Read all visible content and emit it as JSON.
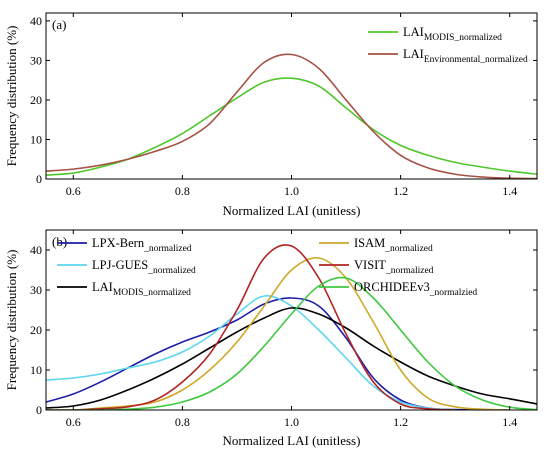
{
  "chart_data": [
    {
      "type": "line",
      "panel_label": "(a)",
      "xlabel": "Normalized LAI (unitless)",
      "ylabel": "Frequency distribution (%)",
      "xlim": [
        0.55,
        1.45
      ],
      "ylim": [
        0,
        42
      ],
      "xticks": [
        "0.6",
        "0.8",
        "1.0",
        "1.2",
        "1.4"
      ],
      "yticks": [
        "0",
        "10",
        "20",
        "30",
        "40"
      ],
      "legend_position": "top-right",
      "series": [
        {
          "name": "LAI",
          "sub": "MODIS_normalized",
          "color": "#4fc72b",
          "x": [
            0.55,
            0.6,
            0.65,
            0.7,
            0.75,
            0.8,
            0.85,
            0.9,
            0.95,
            1.0,
            1.05,
            1.1,
            1.15,
            1.2,
            1.25,
            1.3,
            1.35,
            1.4,
            1.45
          ],
          "y": [
            1,
            1.5,
            3,
            5,
            8,
            11.5,
            16,
            20.5,
            24.5,
            25.5,
            23.5,
            18,
            12.5,
            8.5,
            6,
            4.2,
            3,
            2,
            1.2
          ]
        },
        {
          "name": "LAI",
          "sub": "Environmental_normalized",
          "color": "#a55345",
          "x": [
            0.55,
            0.6,
            0.65,
            0.7,
            0.75,
            0.8,
            0.85,
            0.9,
            0.95,
            1.0,
            1.05,
            1.1,
            1.15,
            1.2,
            1.25,
            1.3,
            1.35,
            1.4,
            1.45
          ],
          "y": [
            2,
            2.5,
            3.5,
            5,
            7,
            9.5,
            14,
            22,
            29.5,
            31.5,
            28,
            20,
            12,
            6,
            2.8,
            1.2,
            0.5,
            0.2,
            0.1
          ]
        }
      ]
    },
    {
      "type": "line",
      "panel_label": "(b)",
      "xlabel": "Normalized LAI (unitless)",
      "ylabel": "Frequency distribution (%)",
      "xlim": [
        0.55,
        1.45
      ],
      "ylim": [
        0,
        45
      ],
      "xticks": [
        "0.6",
        "0.8",
        "1.0",
        "1.2",
        "1.4"
      ],
      "yticks": [
        "0",
        "10",
        "20",
        "30",
        "40"
      ],
      "legend_position": "top",
      "series": [
        {
          "name": "LPX-Bern",
          "sub": "_normalized",
          "color": "#1e1ea8",
          "x": [
            0.55,
            0.6,
            0.65,
            0.7,
            0.75,
            0.8,
            0.85,
            0.9,
            0.95,
            1.0,
            1.05,
            1.1,
            1.15,
            1.2,
            1.25,
            1.3,
            1.35,
            1.4
          ],
          "y": [
            2,
            4,
            7,
            10.5,
            14,
            17,
            19.5,
            22.5,
            26.5,
            28,
            26,
            18,
            8,
            2.5,
            0.5,
            0.1,
            0,
            0
          ]
        },
        {
          "name": "LPJ-GUES",
          "sub": "_normalized",
          "color": "#5cd6f0",
          "x": [
            0.55,
            0.6,
            0.65,
            0.7,
            0.75,
            0.8,
            0.85,
            0.9,
            0.95,
            1.0,
            1.05,
            1.1,
            1.15,
            1.2,
            1.25,
            1.3
          ],
          "y": [
            7.5,
            8,
            9,
            10.5,
            12,
            14.5,
            18.5,
            24,
            28.5,
            26,
            20,
            13,
            6,
            2,
            0.5,
            0
          ]
        },
        {
          "name": "LAI",
          "sub": "MODIS_normalized",
          "color": "#000000",
          "x": [
            0.55,
            0.6,
            0.65,
            0.7,
            0.75,
            0.8,
            0.85,
            0.9,
            0.95,
            1.0,
            1.05,
            1.1,
            1.15,
            1.2,
            1.25,
            1.3,
            1.35,
            1.4,
            1.45
          ],
          "y": [
            0.5,
            1,
            2.5,
            5,
            8,
            11.5,
            15.5,
            19.5,
            23,
            25.5,
            24,
            20.5,
            16,
            12,
            8.5,
            6,
            4,
            2.8,
            1.5
          ]
        },
        {
          "name": "ISAM",
          "sub": "_normalized",
          "color": "#cfa828",
          "x": [
            0.55,
            0.6,
            0.65,
            0.7,
            0.75,
            0.8,
            0.85,
            0.9,
            0.95,
            1.0,
            1.05,
            1.1,
            1.15,
            1.2,
            1.25,
            1.3,
            1.35,
            1.4
          ],
          "y": [
            0,
            0,
            0.5,
            1,
            2,
            5,
            10,
            17,
            26,
            35,
            38,
            33,
            22,
            10,
            3,
            0.8,
            0.2,
            0
          ]
        },
        {
          "name": "VISIT",
          "sub": "_normalized",
          "color": "#b02424",
          "x": [
            0.55,
            0.6,
            0.65,
            0.7,
            0.75,
            0.8,
            0.85,
            0.9,
            0.95,
            1.0,
            1.05,
            1.1,
            1.15,
            1.2,
            1.25,
            1.3
          ],
          "y": [
            0,
            0,
            0.3,
            0.8,
            2.5,
            7,
            14,
            25,
            38,
            41,
            33,
            19,
            7,
            1.5,
            0.3,
            0
          ]
        },
        {
          "name": "ORCHIDEEv3",
          "sub": "_normalzied",
          "color": "#3ec83e",
          "x": [
            0.55,
            0.6,
            0.65,
            0.7,
            0.75,
            0.8,
            0.85,
            0.9,
            0.95,
            1.0,
            1.05,
            1.1,
            1.15,
            1.2,
            1.25,
            1.3,
            1.35,
            1.4,
            1.45
          ],
          "y": [
            0,
            0,
            0,
            0.2,
            0.7,
            2,
            4.5,
            9,
            16,
            24,
            31,
            33,
            28,
            20,
            12,
            6,
            2.5,
            0.7,
            0.1
          ]
        }
      ]
    }
  ]
}
